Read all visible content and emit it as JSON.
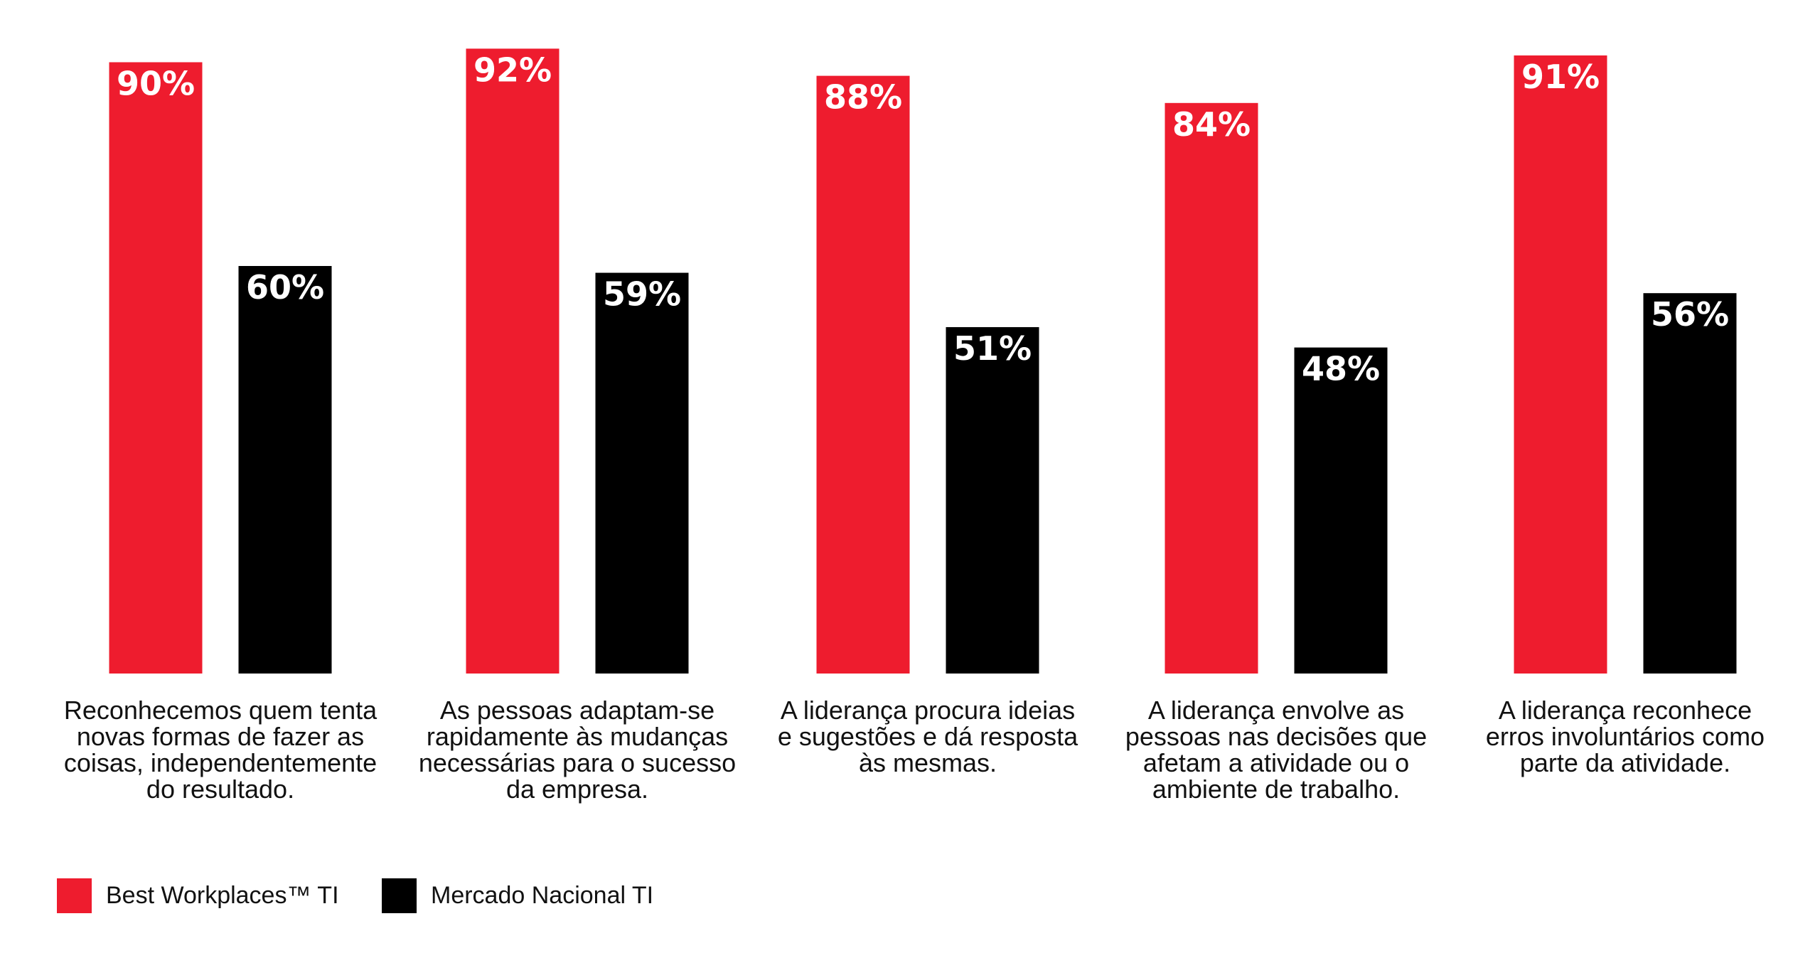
{
  "chart_data": {
    "type": "bar",
    "categories": [
      "Reconhecemos quem tenta\nnovas formas de fazer as\ncoisas, independentemente\ndo resultado.",
      "As pessoas adaptam-se\nrapidamente às mudanças\nnecessárias para o sucesso\nda empresa.",
      "A liderança procura ideias\ne sugestões e dá resposta\nàs mesmas.",
      "A liderança envolve as\npessoas nas decisões que\nafetam a atividade ou o\nambiente de trabalho.",
      "A liderança reconhece\nerros involuntários como\nparte da atividade."
    ],
    "series": [
      {
        "name": "Best Workplaces™ TI",
        "color": "#ee1c2e",
        "values": [
          90,
          92,
          88,
          84,
          91
        ],
        "labels": [
          "90%",
          "92%",
          "88%",
          "84%",
          "91%"
        ]
      },
      {
        "name": "Mercado Nacional TI",
        "color": "#000000",
        "values": [
          60,
          59,
          51,
          48,
          56
        ],
        "labels": [
          "60%",
          "59%",
          "51%",
          "48%",
          "56%"
        ]
      }
    ],
    "ylim": [
      0,
      100
    ],
    "grid": false,
    "legend_position": "bottom-left"
  }
}
